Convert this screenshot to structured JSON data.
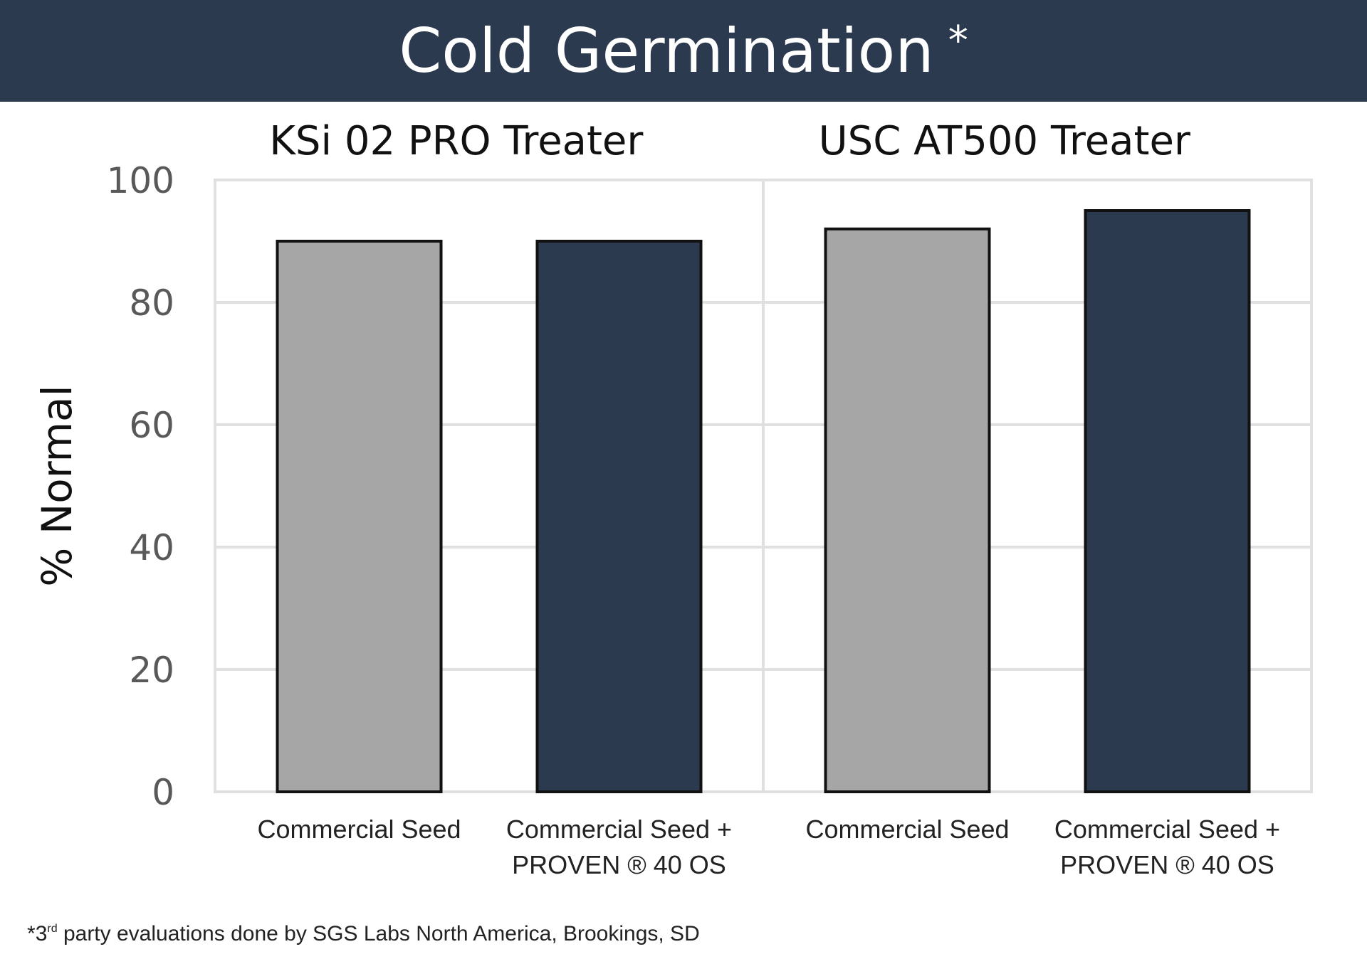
{
  "title": "Cold Germination",
  "title_mark": "*",
  "footnote": {
    "mark": "*",
    "ordinal_num": "3",
    "ordinal_suffix": "rd",
    "text": " party evaluations done by SGS Labs North America, Brookings, SD"
  },
  "colors": {
    "banner": "#2c3a4f",
    "commercial_seed": "#a6a6a6",
    "proven": "#2c3a4f",
    "grid": "#e0e0e0",
    "bar_border": "#111111"
  },
  "chart_data": {
    "type": "bar",
    "ylabel": "% Normal",
    "ylim": [
      0,
      100
    ],
    "yticks": [
      0,
      20,
      40,
      60,
      80,
      100
    ],
    "grid": true,
    "panels": [
      {
        "title": "KSi 02 PRO Treater",
        "categories": [
          [
            "Commercial Seed"
          ],
          [
            "Commercial Seed +",
            "PROVEN ® 40 OS"
          ]
        ],
        "values": [
          90,
          90
        ]
      },
      {
        "title": "USC AT500 Treater",
        "categories": [
          [
            "Commercial Seed"
          ],
          [
            "Commercial Seed +",
            "PROVEN ® 40 OS"
          ]
        ],
        "values": [
          92,
          95
        ]
      }
    ]
  }
}
